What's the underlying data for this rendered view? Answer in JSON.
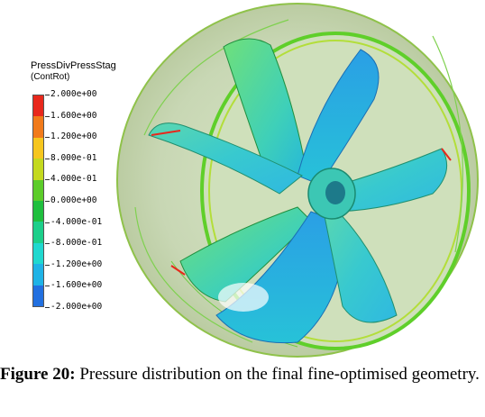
{
  "legend": {
    "title": "PressDivPressStag",
    "subtitle": "(ContRot)",
    "ticks": [
      "2.000e+00",
      "1.600e+00",
      "1.200e+00",
      "8.000e-01",
      "4.000e-01",
      "0.000e+00",
      "-4.000e-01",
      "-8.000e-01",
      "-1.200e+00",
      "-1.600e+00",
      "-2.000e+00"
    ],
    "colors": [
      "#e8281c",
      "#f17a1a",
      "#f6c61e",
      "#c4d91f",
      "#5ccc2a",
      "#1fbf3e",
      "#1ccf8a",
      "#20d8cf",
      "#1fb3e6",
      "#2270e0",
      "#1f3fd1"
    ]
  },
  "caption": {
    "label": "Figure 20:",
    "text": "Pressure distribution on the final fine-optimised geometry."
  }
}
